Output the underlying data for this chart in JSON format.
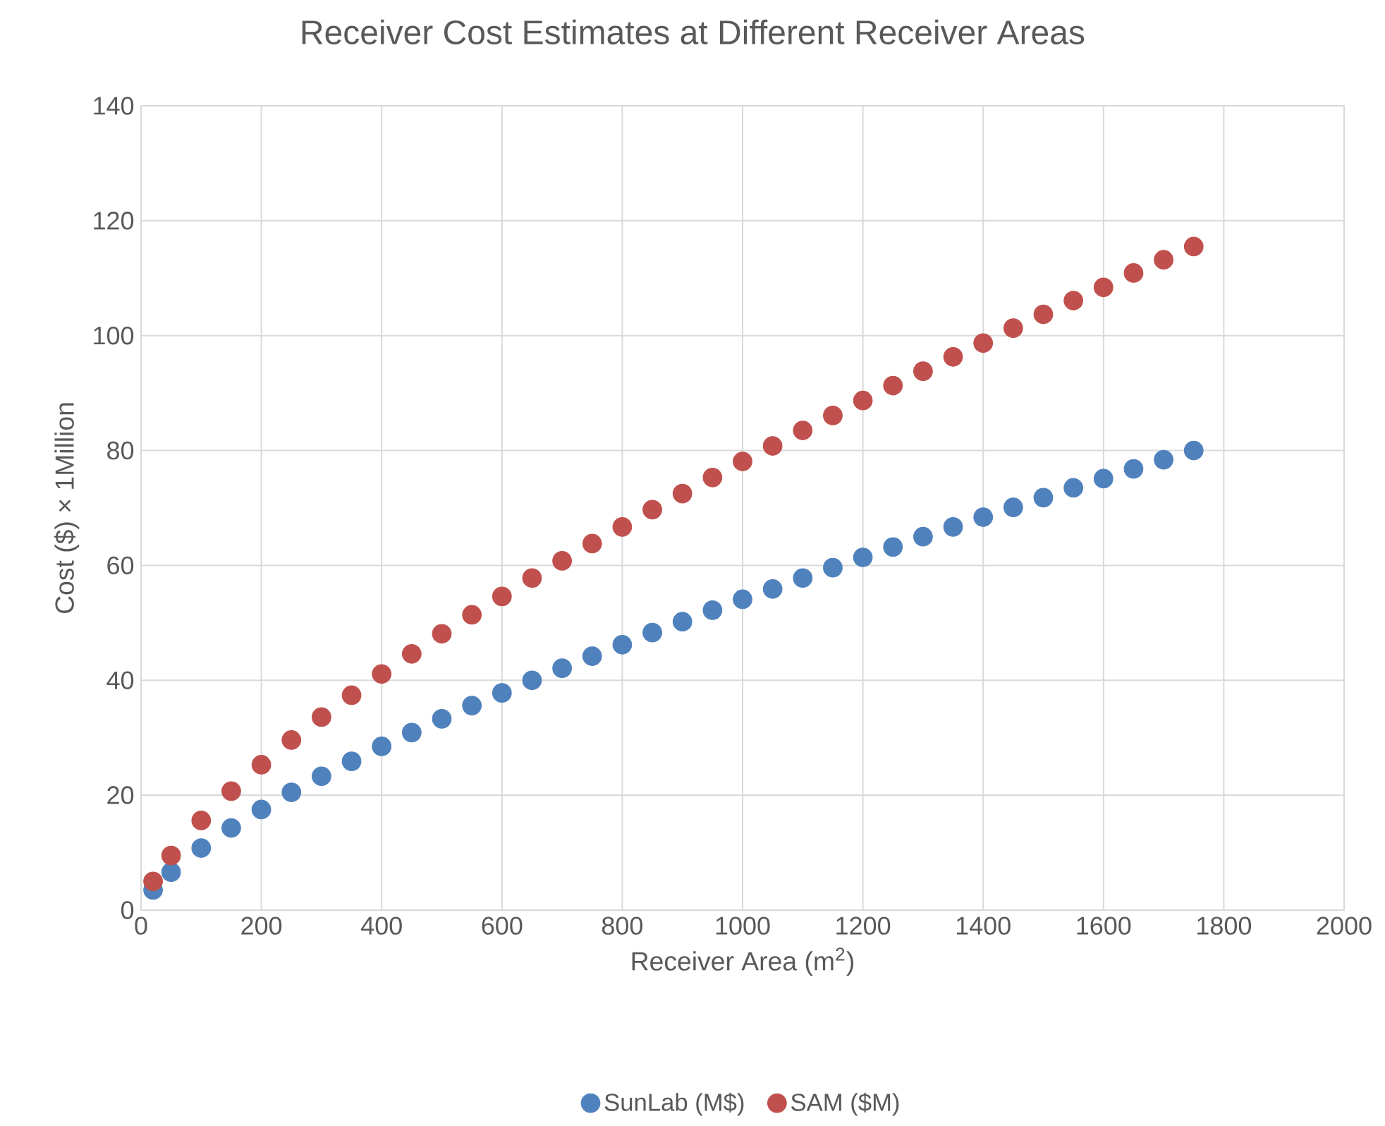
{
  "chart_data": {
    "type": "scatter",
    "title": "Receiver Cost Estimates at Different Receiver Areas",
    "xlabel": "Receiver Area (m$^{2}$)",
    "ylabel": "Cost ($) × 1Million",
    "series": [
      {
        "name": "SunLab (M$)",
        "color": "#4f81bd",
        "x": [
          20,
          50,
          100,
          150,
          200,
          250,
          300,
          350,
          400,
          450,
          500,
          550,
          600,
          650,
          700,
          750,
          800,
          850,
          900,
          950,
          1000,
          1050,
          1100,
          1150,
          1200,
          1250,
          1300,
          1350,
          1400,
          1450,
          1500,
          1550,
          1600,
          1650,
          1700,
          1750
        ],
        "values": [
          3.5,
          6.6,
          10.8,
          14.3,
          17.5,
          20.5,
          23.3,
          25.9,
          28.5,
          30.9,
          33.3,
          35.6,
          37.8,
          40.0,
          42.1,
          44.2,
          46.2,
          48.3,
          50.2,
          52.2,
          54.1,
          55.9,
          57.8,
          59.6,
          61.4,
          63.2,
          65.0,
          66.7,
          68.4,
          70.1,
          71.8,
          73.5,
          75.1,
          76.8,
          78.4,
          80.0
        ]
      },
      {
        "name": "SAM ($M)",
        "color": "#c0504d",
        "x": [
          20,
          50,
          100,
          150,
          200,
          250,
          300,
          350,
          400,
          450,
          500,
          550,
          600,
          650,
          700,
          750,
          800,
          850,
          900,
          950,
          1000,
          1050,
          1100,
          1150,
          1200,
          1250,
          1300,
          1350,
          1400,
          1450,
          1500,
          1550,
          1600,
          1650,
          1700,
          1750
        ],
        "values": [
          5.0,
          9.5,
          15.6,
          20.7,
          25.3,
          29.6,
          33.6,
          37.4,
          41.1,
          44.6,
          48.1,
          51.4,
          54.6,
          57.8,
          60.8,
          63.8,
          66.7,
          69.7,
          72.5,
          75.3,
          78.1,
          80.8,
          83.5,
          86.1,
          88.7,
          91.3,
          93.8,
          96.3,
          98.7,
          101.3,
          103.7,
          106.1,
          108.4,
          110.9,
          113.2,
          115.5
        ]
      }
    ],
    "xlim": [
      0,
      2000
    ],
    "xticks": [
      0,
      200,
      400,
      600,
      800,
      1000,
      1200,
      1400,
      1600,
      1800,
      2000
    ],
    "ylim": [
      0,
      140
    ],
    "yticks": [
      0,
      20,
      40,
      60,
      80,
      100,
      120,
      140
    ],
    "grid": true,
    "legend": "bottom",
    "marker": "circle"
  }
}
